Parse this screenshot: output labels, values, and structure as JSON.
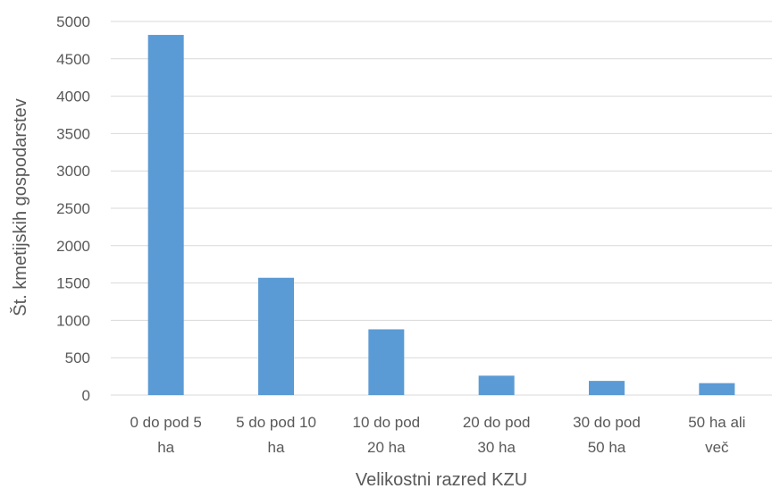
{
  "chart_data": {
    "type": "bar",
    "categories": [
      [
        "0 do pod 5",
        "ha"
      ],
      [
        "5 do pod 10",
        "ha"
      ],
      [
        "10 do pod",
        "20 ha"
      ],
      [
        "20 do pod",
        "30 ha"
      ],
      [
        "30 do pod",
        "50 ha"
      ],
      [
        "50 ha ali",
        "več"
      ]
    ],
    "values": [
      4820,
      1570,
      880,
      260,
      190,
      160
    ],
    "yticks": [
      "0",
      "500",
      "1000",
      "1500",
      "2000",
      "2500",
      "3000",
      "3500",
      "4000",
      "4500",
      "5000"
    ],
    "xlabel": "Velikostni razred KZU",
    "ylabel": "Št. kmetijskih gospodarstev",
    "ylim": [
      0,
      5000
    ],
    "grid": true,
    "bar_color": "#5b9bd5",
    "grid_color": "#d9d9d9",
    "text_color": "#595959"
  }
}
